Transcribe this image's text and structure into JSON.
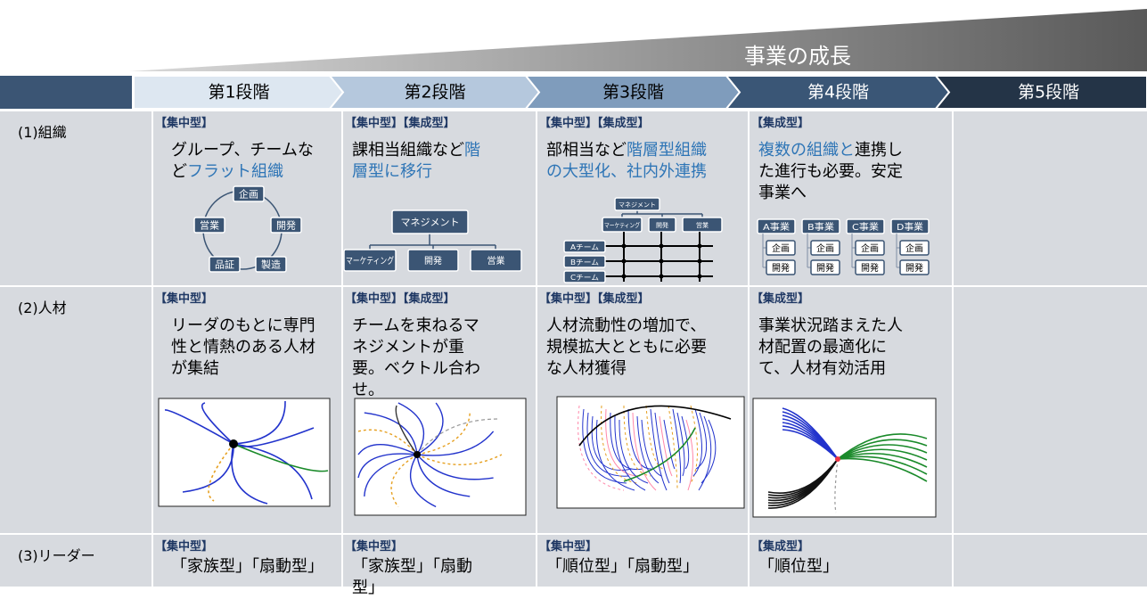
{
  "growth_label": "事業の成長",
  "stages": [
    "第1段階",
    "第2段階",
    "第3段階",
    "第4段階",
    "第5段階"
  ],
  "rows": [
    {
      "label": "(1)組織",
      "cells": [
        {
          "tags": "【集中型】",
          "text": [
            {
              "text": "グループ、チームなど",
              "color": "#000000"
            },
            {
              "text": "フラット組織",
              "color": "#2e75b6"
            }
          ],
          "diagram": [
            "企画",
            "開発",
            "製造",
            "品証",
            "営業"
          ]
        },
        {
          "tags": "【集中型】【集成型】",
          "text": [
            {
              "text": "課相当組織など",
              "color": "#000000"
            },
            {
              "text": "階層型に移行",
              "color": "#2e75b6"
            }
          ],
          "diagram": {
            "top": "マネジメント",
            "units": [
              "マーケティング",
              "開発",
              "営業"
            ]
          }
        },
        {
          "tags": "【集中型】【集成型】",
          "text": [
            {
              "text": "部相当など",
              "color": "#000000"
            },
            {
              "text": "階層型組織の大型化、社内外連携",
              "color": "#2e75b6"
            }
          ],
          "diagram": {
            "top": "マネジメント",
            "units": [
              "マーケティング",
              "開発",
              "営業"
            ],
            "teams": [
              "Aチーム",
              "Bチーム",
              "Cチーム"
            ]
          }
        },
        {
          "tags": "【集成型】",
          "text": [
            {
              "text": "複数の組織と",
              "color": "#2e75b6"
            },
            {
              "text": "連携した進行も必要。安定事業へ",
              "color": "#000000"
            }
          ],
          "diagram": {
            "businesses": [
              "A事業",
              "B事業",
              "C事業",
              "D事業"
            ],
            "functions": [
              "企画",
              "開発"
            ]
          }
        }
      ]
    },
    {
      "label": "(2)人材",
      "cells": [
        {
          "tags": "【集中型】",
          "text": [
            {
              "text": "リーダのもとに専門性と情熱のある人材が集結",
              "color": "#000000"
            }
          ]
        },
        {
          "tags": "【集中型】【集成型】",
          "text": [
            {
              "text": "チームを束ねるマネジメントが重要。ベクトル合わせ。",
              "color": "#000000"
            }
          ]
        },
        {
          "tags": "【集中型】【集成型】",
          "text": [
            {
              "text": "人材流動性の増加で、規模拡大とともに必要な人材獲得",
              "color": "#000000"
            }
          ]
        },
        {
          "tags": "【集成型】",
          "text": [
            {
              "text": "事業状況踏まえた人材配置の最適化にて、人材有効活用",
              "color": "#000000"
            }
          ]
        }
      ]
    },
    {
      "label": "(3)リーダー",
      "cells": [
        {
          "tags": "【集中型】",
          "text": [
            {
              "text": "「家族型」「扇動型」",
              "color": "#000000"
            }
          ]
        },
        {
          "tags": "【集中型】",
          "text": [
            {
              "text": "「家族型」「扇動型」",
              "color": "#000000"
            }
          ]
        },
        {
          "tags": "【集中型】",
          "text": [
            {
              "text": "「順位型」「扇動型」",
              "color": "#000000"
            }
          ]
        },
        {
          "tags": "【集成型】",
          "text": [
            {
              "text": "「順位型」",
              "color": "#000000"
            }
          ]
        }
      ]
    }
  ]
}
